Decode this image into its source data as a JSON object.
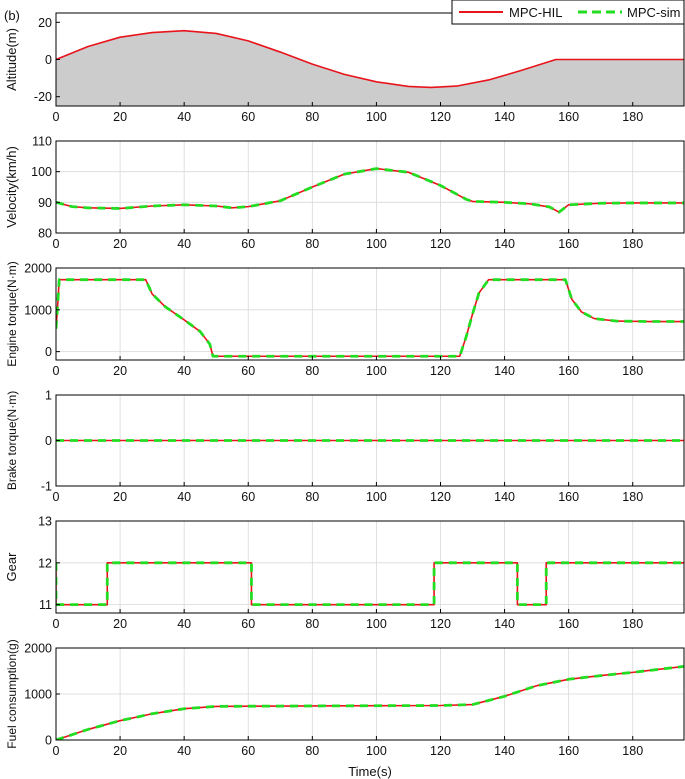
{
  "panel_label": "(b)",
  "legend": {
    "location": "top-right",
    "entries": [
      {
        "label": "MPC-HIL",
        "color": "#e8141b",
        "style": "solid"
      },
      {
        "label": "MPC-sim",
        "color": "#22dd22",
        "style": "dashed"
      }
    ]
  },
  "chart_data": [
    {
      "type": "area",
      "id": "altitude",
      "ylabel": "Altitude(m)",
      "xlim": [
        0,
        196
      ],
      "ylim": [
        -25,
        25
      ],
      "xticks": [
        0,
        20,
        40,
        60,
        80,
        100,
        120,
        140,
        160,
        180
      ],
      "yticks": [
        -20,
        0,
        20
      ],
      "grid": false,
      "fill": "#cccccc",
      "series": [
        {
          "label": "MPC-HIL",
          "color": "#e8141b",
          "x": [
            0,
            10,
            20,
            30,
            40,
            50,
            60,
            70,
            80,
            90,
            100,
            110,
            117,
            125,
            135,
            145,
            156,
            165,
            196
          ],
          "y": [
            0,
            7,
            12,
            14.5,
            15.5,
            14,
            10,
            4,
            -2.5,
            -8,
            -12,
            -14.5,
            -15,
            -14.3,
            -11,
            -6,
            0,
            0,
            0
          ]
        }
      ]
    },
    {
      "type": "line",
      "id": "velocity",
      "ylabel": "Velocity(km/h)",
      "xlim": [
        0,
        196
      ],
      "ylim": [
        80,
        110
      ],
      "xticks": [
        0,
        20,
        40,
        60,
        80,
        100,
        120,
        140,
        160,
        180
      ],
      "yticks": [
        80,
        90,
        100,
        110
      ],
      "grid": true,
      "series": [
        {
          "label": "MPC-HIL",
          "color": "#e8141b",
          "x": [
            0,
            5,
            10,
            20,
            30,
            40,
            50,
            55,
            60,
            70,
            80,
            90,
            100,
            110,
            120,
            128,
            130,
            140,
            148,
            154,
            157,
            160,
            170,
            180,
            196
          ],
          "y": [
            90,
            88.6,
            88.2,
            88,
            88.8,
            89.2,
            88.8,
            88.2,
            88.6,
            90.5,
            95,
            99.2,
            101,
            99.8,
            95.5,
            91,
            90.3,
            90,
            89.5,
            88.5,
            86.8,
            89.2,
            89.7,
            89.8,
            89.8
          ]
        },
        {
          "label": "MPC-sim",
          "color": "#22dd22",
          "x": [
            0,
            5,
            10,
            20,
            30,
            40,
            50,
            55,
            60,
            70,
            80,
            90,
            100,
            110,
            120,
            128,
            130,
            140,
            148,
            154,
            157,
            160,
            170,
            180,
            196
          ],
          "y": [
            90,
            88.6,
            88.2,
            88,
            88.8,
            89.2,
            88.8,
            88.2,
            88.6,
            90.5,
            95,
            99.2,
            101,
            99.8,
            95.5,
            91,
            90.3,
            90,
            89.5,
            88.5,
            86.8,
            89.2,
            89.7,
            89.8,
            89.8
          ]
        }
      ]
    },
    {
      "type": "line",
      "id": "engine-torque",
      "ylabel": "Engine torque(N·m)",
      "xlim": [
        0,
        196
      ],
      "ylim": [
        -200,
        2000
      ],
      "xticks": [
        0,
        20,
        40,
        60,
        80,
        100,
        120,
        140,
        160,
        180
      ],
      "yticks": [
        0,
        1000,
        2000
      ],
      "grid": true,
      "series": [
        {
          "label": "MPC-HIL",
          "color": "#e8141b",
          "x": [
            0,
            0.6,
            1,
            28,
            30,
            34,
            40,
            45,
            48,
            49,
            50,
            126,
            128,
            130,
            132,
            135,
            159,
            161,
            164,
            168,
            175,
            185,
            196
          ],
          "y": [
            550,
            1200,
            1720,
            1720,
            1380,
            1080,
            760,
            480,
            180,
            -110,
            -110,
            -110,
            350,
            900,
            1400,
            1720,
            1720,
            1250,
            950,
            790,
            730,
            720,
            720
          ]
        },
        {
          "label": "MPC-sim",
          "color": "#22dd22",
          "x": [
            0,
            0.6,
            1,
            28,
            30,
            34,
            40,
            45,
            48,
            49,
            50,
            126,
            128,
            130,
            132,
            135,
            159,
            161,
            164,
            168,
            175,
            185,
            196
          ],
          "y": [
            550,
            1200,
            1720,
            1720,
            1380,
            1080,
            760,
            480,
            180,
            -110,
            -110,
            -110,
            350,
            900,
            1400,
            1720,
            1720,
            1250,
            950,
            790,
            730,
            720,
            720
          ]
        }
      ]
    },
    {
      "type": "line",
      "id": "brake-torque",
      "ylabel": "Brake torque(N·m)",
      "xlim": [
        0,
        196
      ],
      "ylim": [
        -1,
        1
      ],
      "xticks": [
        0,
        20,
        40,
        60,
        80,
        100,
        120,
        140,
        160,
        180
      ],
      "yticks": [
        -1,
        0,
        1
      ],
      "grid": true,
      "series": [
        {
          "label": "MPC-HIL",
          "color": "#e8141b",
          "x": [
            0,
            196
          ],
          "y": [
            0,
            0
          ]
        },
        {
          "label": "MPC-sim",
          "color": "#22dd22",
          "x": [
            0,
            196
          ],
          "y": [
            0,
            0
          ]
        }
      ]
    },
    {
      "type": "line",
      "id": "gear",
      "ylabel": "Gear",
      "xlim": [
        0,
        196
      ],
      "ylim": [
        10.8,
        13
      ],
      "xticks": [
        0,
        20,
        40,
        60,
        80,
        100,
        120,
        140,
        160,
        180
      ],
      "yticks": [
        11,
        12,
        13
      ],
      "grid": true,
      "series": [
        {
          "label": "MPC-HIL",
          "color": "#e8141b",
          "x": [
            0,
            0,
            16,
            16,
            61,
            61,
            118,
            118,
            144,
            144,
            153,
            153,
            196
          ],
          "y": [
            12,
            11,
            11,
            12,
            12,
            11,
            11,
            12,
            12,
            11,
            11,
            12,
            12
          ]
        },
        {
          "label": "MPC-sim",
          "color": "#22dd22",
          "x": [
            0,
            0,
            16,
            16,
            61,
            61,
            118,
            118,
            144,
            144,
            153,
            153,
            196
          ],
          "y": [
            12,
            11,
            11,
            12,
            12,
            11,
            11,
            12,
            12,
            11,
            11,
            12,
            12
          ]
        }
      ]
    },
    {
      "type": "line",
      "id": "fuel-consumption",
      "ylabel": "Fuel consumption(g)",
      "xlabel": "Time(s)",
      "xlim": [
        0,
        196
      ],
      "ylim": [
        0,
        2000
      ],
      "xticks": [
        0,
        20,
        40,
        60,
        80,
        100,
        120,
        140,
        160,
        180
      ],
      "yticks": [
        0,
        1000,
        2000
      ],
      "grid": true,
      "series": [
        {
          "label": "MPC-HIL",
          "color": "#e8141b",
          "x": [
            0,
            10,
            20,
            30,
            40,
            50,
            60,
            80,
            100,
            120,
            130,
            140,
            150,
            160,
            170,
            180,
            196
          ],
          "y": [
            0,
            230,
            420,
            570,
            680,
            730,
            735,
            740,
            745,
            750,
            770,
            950,
            1180,
            1320,
            1400,
            1470,
            1600
          ]
        },
        {
          "label": "MPC-sim",
          "color": "#22dd22",
          "x": [
            0,
            10,
            20,
            30,
            40,
            50,
            60,
            80,
            100,
            120,
            130,
            140,
            150,
            160,
            170,
            180,
            196
          ],
          "y": [
            0,
            230,
            420,
            570,
            680,
            730,
            735,
            740,
            745,
            750,
            770,
            950,
            1180,
            1320,
            1400,
            1470,
            1600
          ]
        }
      ]
    }
  ]
}
